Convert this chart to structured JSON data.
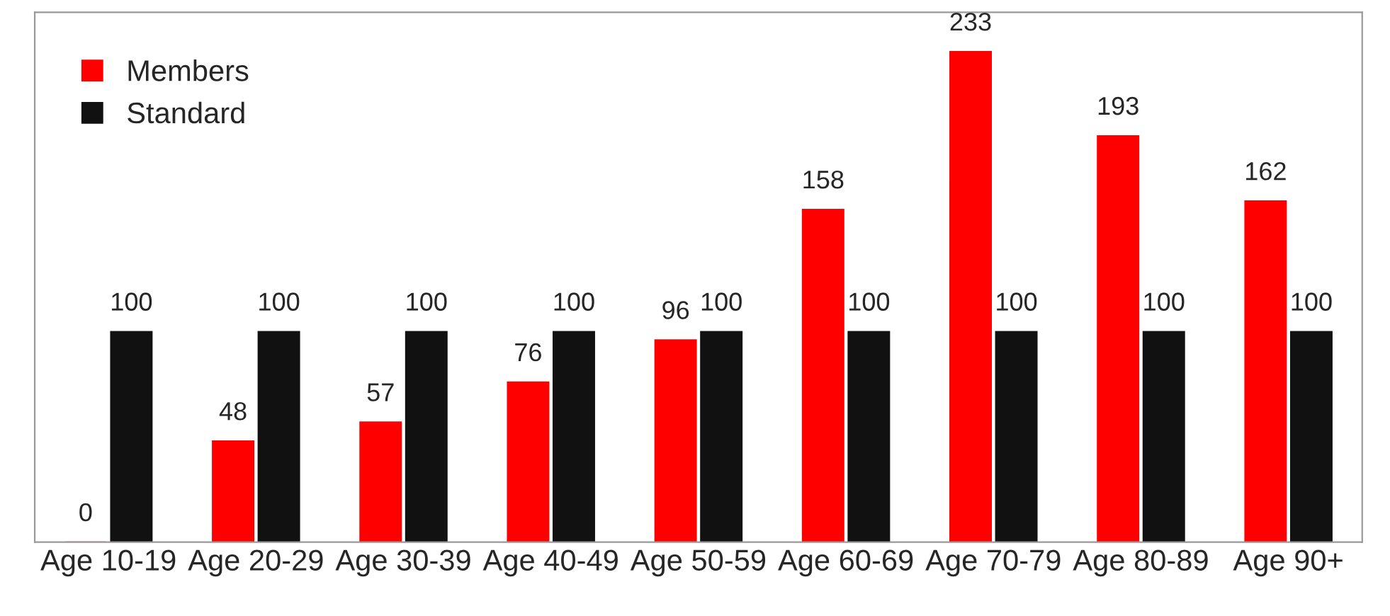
{
  "chart_data": {
    "type": "bar",
    "categories": [
      "Age 10-19",
      "Age 20-29",
      "Age 30-39",
      "Age 40-49",
      "Age 50-59",
      "Age 60-69",
      "Age 70-79",
      "Age 80-89",
      "Age 90+"
    ],
    "series": [
      {
        "name": "Members",
        "color": "#ff0000",
        "values": [
          0,
          48,
          57,
          76,
          96,
          158,
          233,
          193,
          162
        ]
      },
      {
        "name": "Standard",
        "color": "#111111",
        "values": [
          100,
          100,
          100,
          100,
          100,
          100,
          100,
          100,
          100
        ]
      }
    ],
    "data_labels": true,
    "legend": "top left",
    "tick_labels": "x",
    "grid": false
  }
}
